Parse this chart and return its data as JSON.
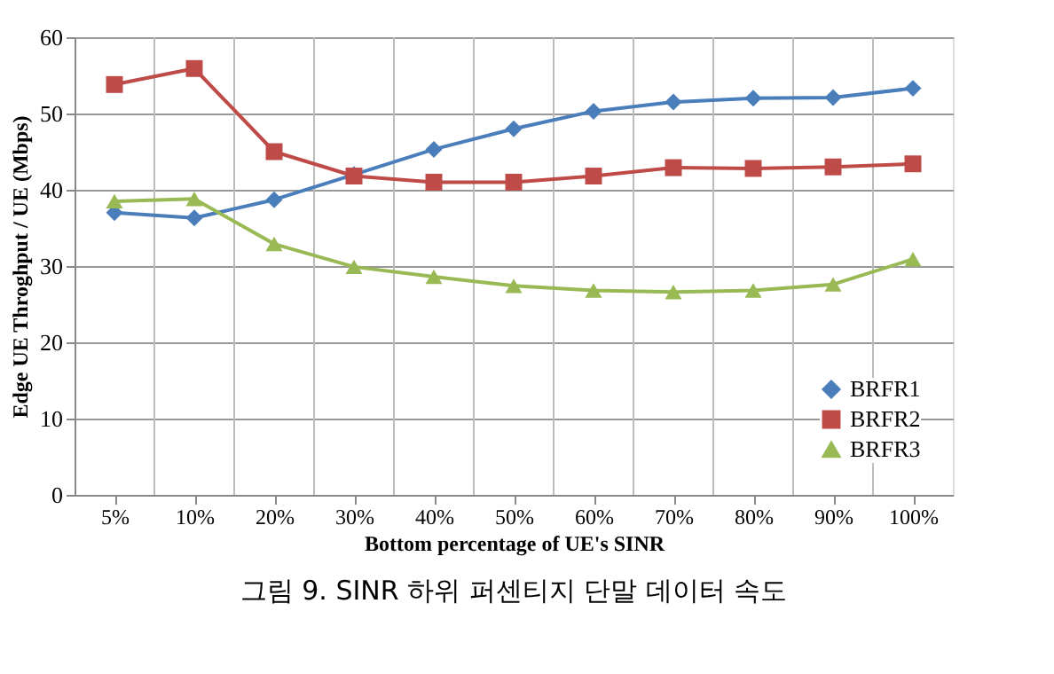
{
  "chart_data": {
    "type": "line",
    "xlabel": "Bottom percentage of UE's  SINR",
    "ylabel": "Edge UE Throghput / UE (Mbps)",
    "categories": [
      "5%",
      "10%",
      "20%",
      "30%",
      "40%",
      "50%",
      "60%",
      "70%",
      "80%",
      "90%",
      "100%"
    ],
    "series": [
      {
        "name": "BRFR1",
        "color": "#4a7ebb",
        "marker": "diamond",
        "values": [
          37,
          36.3,
          38.7,
          42,
          45.3,
          48,
          50.3,
          51.5,
          52,
          52.1,
          53.3
        ]
      },
      {
        "name": "BRFR2",
        "color": "#be4b48",
        "marker": "square",
        "values": [
          53.8,
          55.9,
          45,
          41.8,
          41,
          41,
          41.8,
          42.9,
          42.8,
          43,
          43.4
        ]
      },
      {
        "name": "BRFR3",
        "color": "#98b954",
        "marker": "triangle",
        "values": [
          38.5,
          38.8,
          32.9,
          29.9,
          28.6,
          27.4,
          26.8,
          26.6,
          26.8,
          27.6,
          30.9
        ]
      }
    ],
    "ylim": [
      0,
      60
    ],
    "yticks": [
      0,
      10,
      20,
      30,
      40,
      50,
      60
    ],
    "grid": true,
    "legend": "bottom right",
    "line_style": "solid",
    "annotations": [
      "그림 9. SINR 하위 퍼센티지 단말 데이터 속도"
    ]
  }
}
